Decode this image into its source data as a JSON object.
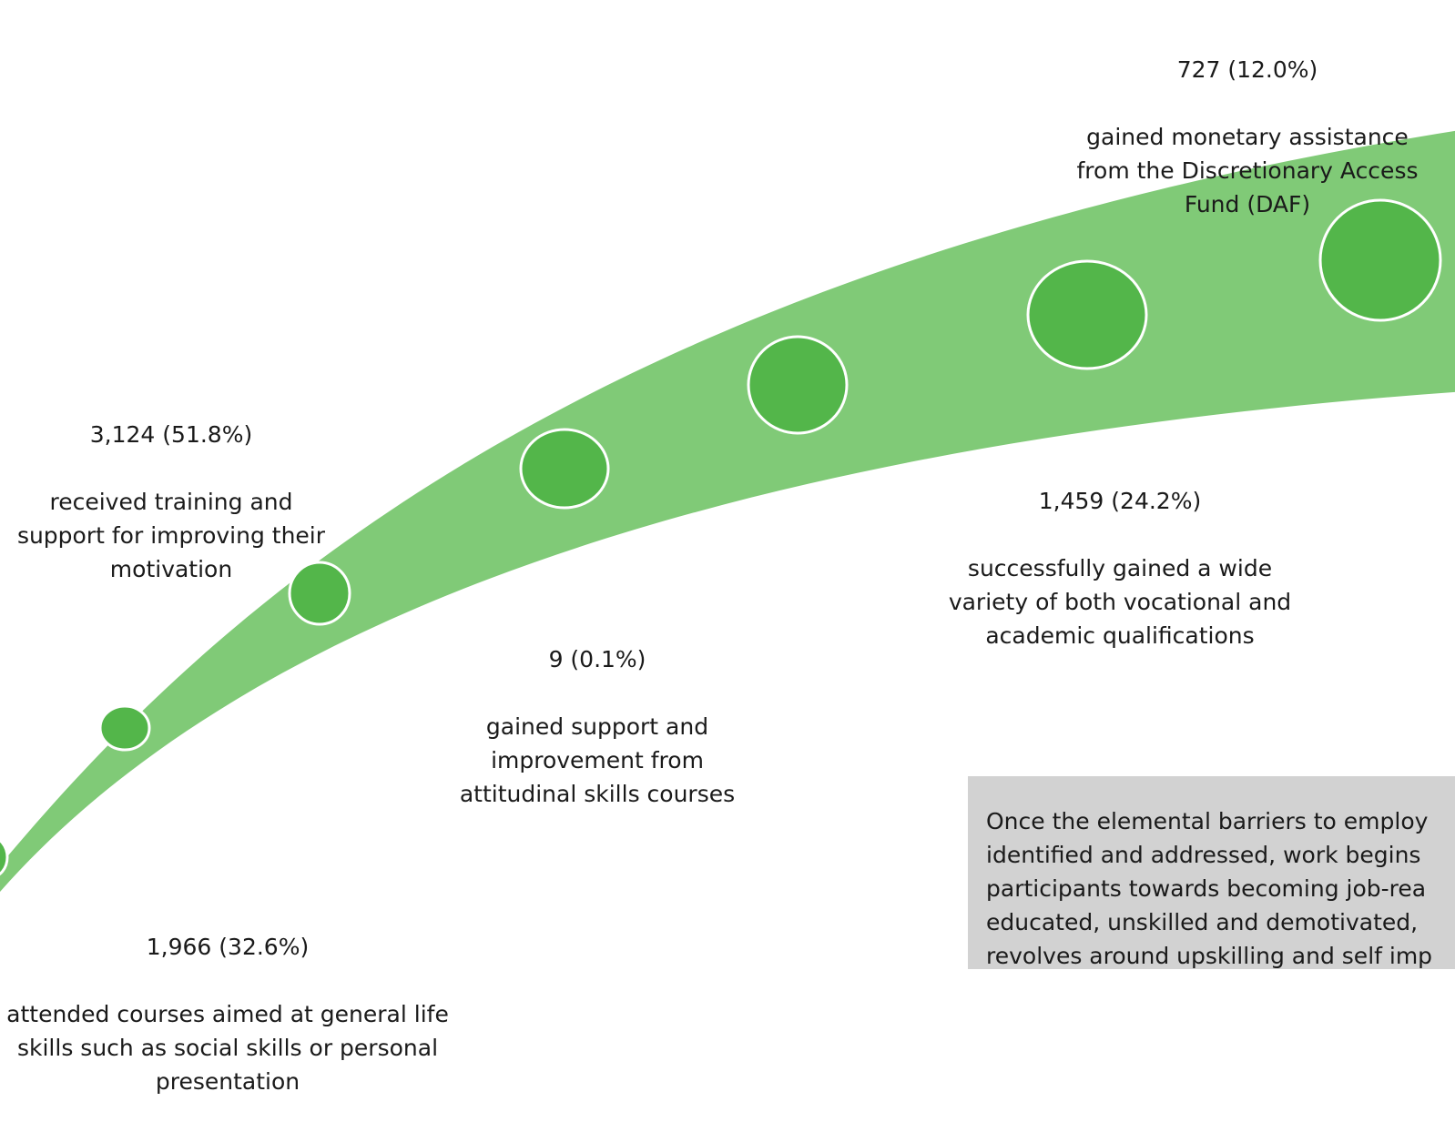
{
  "colors": {
    "band": "#80ca77",
    "node_fill": "#53b64a",
    "node_stroke": "#ffffff",
    "box": "#d2d2d2",
    "text": "#1a1a1a"
  },
  "milestones": [
    {
      "stat": "1,966 (32.6%)",
      "text": "attended courses aimed at general life\nskills such as social skills or personal\npresentation"
    },
    {
      "stat": "3,124 (51.8%)",
      "text": "received training and\nsupport for improving their\nmotivation"
    },
    {
      "stat": "9 (0.1%)",
      "text": "gained support and\nimprovement from\nattitudinal skills courses"
    },
    {
      "stat": "1,459 (24.2%)",
      "text": "successfully gained a wide\nvariety of both vocational and\nacademic qualifications"
    },
    {
      "stat": "727 (12.0%)",
      "text": "gained monetary assistance\nfrom the Discretionary Access\nFund (DAF)"
    }
  ],
  "info_box": {
    "text": "Once the elemental barriers to employ\nidentified and addressed, work begins\nparticipants towards becoming job-rea\neducated, unskilled and demotivated, \nrevolves around upskilling and self imp"
  }
}
